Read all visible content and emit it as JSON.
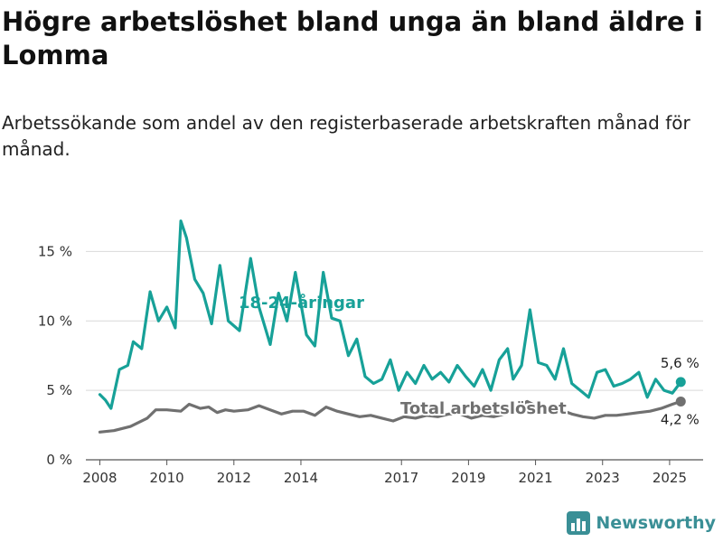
{
  "header": {
    "title": "Högre arbetslöshet bland unga än bland äldre i Lomma",
    "subtitle": "Arbetssökande som andel av den registerbaserade arbetskraften månad för månad."
  },
  "brand": {
    "name": "Newsworthy",
    "color": "#3a8f96"
  },
  "chart_data": {
    "type": "line",
    "title": "Högre arbetslöshet bland unga än bland äldre i Lomma",
    "subtitle": "Arbetssökande som andel av den registerbaserade arbetskraften månad för månad.",
    "x_ticks": [
      "2008",
      "2010",
      "2012",
      "2014",
      "2017",
      "2019",
      "2021",
      "2023",
      "2025"
    ],
    "y_ticks": [
      "0 %",
      "5 %",
      "10 %",
      "15 %"
    ],
    "ylim": [
      0,
      17.5
    ],
    "xlim": [
      "2007-08",
      "2026-01"
    ],
    "grid": "horizontal",
    "series": [
      {
        "name": "18-24-åringar",
        "color": "#17a198",
        "end_label": "5,6 %",
        "x": [
          "2008-01",
          "2008-03",
          "2008-05",
          "2008-08",
          "2008-11",
          "2009-01",
          "2009-04",
          "2009-07",
          "2009-10",
          "2010-01",
          "2010-04",
          "2010-06",
          "2010-08",
          "2010-11",
          "2011-02",
          "2011-05",
          "2011-08",
          "2011-11",
          "2012-03",
          "2012-07",
          "2012-10",
          "2013-02",
          "2013-05",
          "2013-08",
          "2013-11",
          "2014-03",
          "2014-06",
          "2014-09",
          "2014-12",
          "2015-03",
          "2015-06",
          "2015-09",
          "2015-12",
          "2016-03",
          "2016-06",
          "2016-09",
          "2016-12",
          "2017-03",
          "2017-06",
          "2017-09",
          "2017-12",
          "2018-03",
          "2018-06",
          "2018-09",
          "2018-12",
          "2019-03",
          "2019-06",
          "2019-09",
          "2019-12",
          "2020-03",
          "2020-05",
          "2020-08",
          "2020-11",
          "2021-02",
          "2021-05",
          "2021-08",
          "2021-11",
          "2022-02",
          "2022-05",
          "2022-08",
          "2022-11",
          "2023-02",
          "2023-05",
          "2023-08",
          "2023-11",
          "2024-02",
          "2024-05",
          "2024-08",
          "2024-11",
          "2025-02",
          "2025-05"
        ],
        "y": [
          4.7,
          4.3,
          3.7,
          6.5,
          6.8,
          8.5,
          8.0,
          12.1,
          10.0,
          11.0,
          9.5,
          17.2,
          16.0,
          13.0,
          12.0,
          9.8,
          14.0,
          10.0,
          9.3,
          14.5,
          11.0,
          8.3,
          12.0,
          10.0,
          13.5,
          9.0,
          8.2,
          13.5,
          10.2,
          10.0,
          7.5,
          8.7,
          6.0,
          5.5,
          5.8,
          7.2,
          5.0,
          6.3,
          5.5,
          6.8,
          5.8,
          6.3,
          5.6,
          6.8,
          6.0,
          5.3,
          6.5,
          5.0,
          7.2,
          8.0,
          5.8,
          6.8,
          10.8,
          7.0,
          6.8,
          5.8,
          8.0,
          5.5,
          5.0,
          4.5,
          6.3,
          6.5,
          5.3,
          5.5,
          5.8,
          6.3,
          4.5,
          5.8,
          5.0,
          4.8,
          5.6
        ]
      },
      {
        "name": "Total arbetslöshet",
        "color": "#707070",
        "end_label": "4,2 %",
        "x": [
          "2008-01",
          "2008-06",
          "2008-12",
          "2009-06",
          "2009-09",
          "2010-01",
          "2010-06",
          "2010-09",
          "2011-01",
          "2011-04",
          "2011-07",
          "2011-10",
          "2012-01",
          "2012-06",
          "2012-10",
          "2013-02",
          "2013-06",
          "2013-10",
          "2014-02",
          "2014-06",
          "2014-10",
          "2015-02",
          "2015-06",
          "2015-10",
          "2016-02",
          "2016-06",
          "2016-10",
          "2017-02",
          "2017-06",
          "2017-10",
          "2018-02",
          "2018-06",
          "2018-10",
          "2019-02",
          "2019-06",
          "2019-10",
          "2020-02",
          "2020-06",
          "2020-10",
          "2021-02",
          "2021-06",
          "2021-10",
          "2022-02",
          "2022-06",
          "2022-10",
          "2023-02",
          "2023-06",
          "2023-10",
          "2024-02",
          "2024-06",
          "2024-10",
          "2025-02",
          "2025-05"
        ],
        "y": [
          2.0,
          2.1,
          2.4,
          3.0,
          3.6,
          3.6,
          3.5,
          4.0,
          3.7,
          3.8,
          3.4,
          3.6,
          3.5,
          3.6,
          3.9,
          3.6,
          3.3,
          3.5,
          3.5,
          3.2,
          3.8,
          3.5,
          3.3,
          3.1,
          3.2,
          3.0,
          2.8,
          3.1,
          3.0,
          3.2,
          3.1,
          3.3,
          3.3,
          3.0,
          3.2,
          3.1,
          3.3,
          3.7,
          4.2,
          3.8,
          3.6,
          3.6,
          3.3,
          3.1,
          3.0,
          3.2,
          3.2,
          3.3,
          3.4,
          3.5,
          3.7,
          4.0,
          4.2
        ]
      }
    ]
  }
}
